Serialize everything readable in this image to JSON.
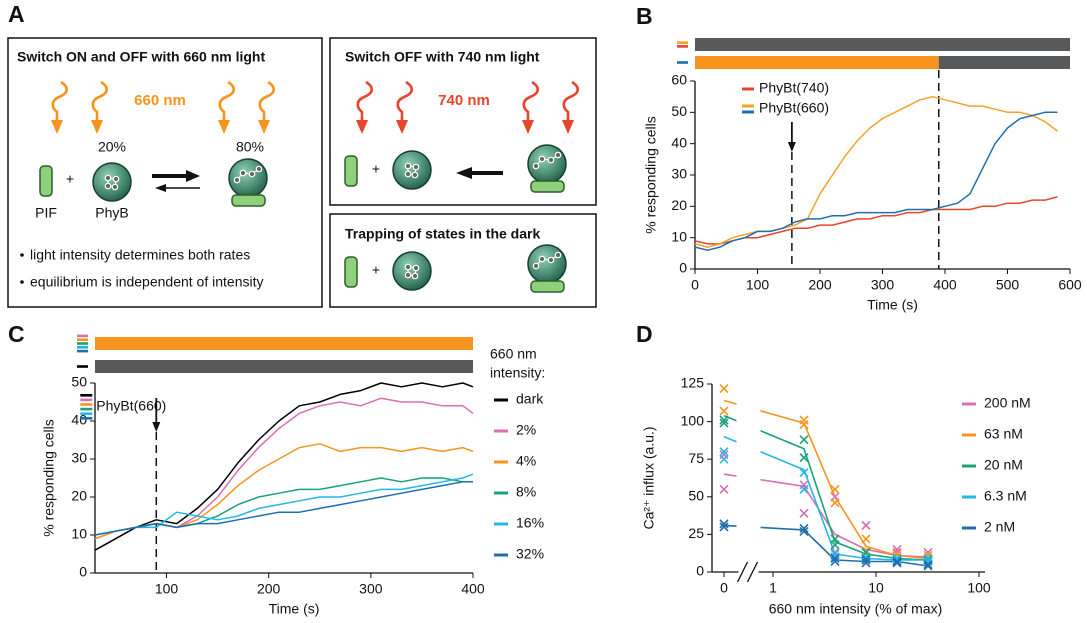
{
  "panel_labels": [
    "A",
    "B",
    "C",
    "D"
  ],
  "diagram": {
    "on_off": {
      "title": "Switch ON and OFF with 660 nm light",
      "light": "660 nm",
      "plus": "+",
      "fraction_free": "20%",
      "fraction_bound": "80%",
      "pif_label": "PIF",
      "phyb_label": "PhyB",
      "notes": [
        "light intensity determines both rates",
        "equilibrium is independent of intensity"
      ]
    },
    "off": {
      "title": "Switch OFF with 740 nm light",
      "light": "740 nm",
      "plus": "+"
    },
    "dark": {
      "title": "Trapping of states in the dark",
      "plus": "+"
    }
  },
  "chart_data": [
    {
      "type": "line",
      "xlabel": "Time (s)",
      "ylabel": "% responding cells",
      "x": [
        0,
        20,
        40,
        60,
        80,
        100,
        120,
        140,
        160,
        180,
        200,
        220,
        240,
        260,
        280,
        300,
        320,
        340,
        360,
        380,
        400,
        420,
        440,
        460,
        480,
        500,
        520,
        540,
        560,
        580
      ],
      "series": [
        {
          "name": "PhyBt(740)",
          "color": "#e8452c",
          "values": [
            9,
            8,
            8,
            9,
            10,
            10,
            11,
            12,
            13,
            13,
            14,
            14,
            15,
            16,
            16,
            17,
            17,
            18,
            18,
            19,
            19,
            19,
            19,
            20,
            20,
            21,
            21,
            22,
            22,
            23
          ]
        },
        {
          "name": "PhyBt(660)",
          "color": "#f7a128",
          "values": [
            8,
            7,
            8,
            10,
            11,
            12,
            12,
            13,
            14,
            16,
            24,
            30,
            36,
            41,
            45,
            48,
            50,
            52,
            54,
            55,
            54,
            53,
            52,
            52,
            51,
            50,
            50,
            49,
            47,
            44
          ]
        },
        {
          "color": "#1f6fae",
          "values": [
            7,
            6,
            7,
            9,
            10,
            12,
            12,
            13,
            15,
            16,
            16,
            17,
            17,
            18,
            18,
            18,
            18,
            19,
            19,
            19,
            20,
            21,
            24,
            32,
            40,
            45,
            48,
            49,
            50,
            50
          ]
        }
      ],
      "xlim": [
        0,
        600
      ],
      "xticks": [
        0,
        100,
        200,
        300,
        400,
        500,
        600
      ],
      "ylim": [
        0,
        60
      ],
      "yticks": [
        0,
        10,
        20,
        30,
        40,
        50,
        60
      ],
      "vlines": [
        155,
        390
      ],
      "arrow_x": 155,
      "legend": "upper-left",
      "light_bars": [
        {
          "series": [
            1,
            0
          ],
          "segments": [
            {
              "start": 0,
              "end": 600,
              "color": "#58595b"
            }
          ]
        },
        {
          "series": [
            2
          ],
          "segments": [
            {
              "start": 0,
              "end": 390,
              "color": "#f7941d"
            },
            {
              "start": 390,
              "end": 600,
              "color": "#58595b"
            }
          ]
        }
      ]
    },
    {
      "type": "line",
      "xlabel": "Time (s)",
      "ylabel": "% responding cells",
      "x": [
        30,
        50,
        70,
        90,
        110,
        130,
        150,
        170,
        190,
        210,
        230,
        250,
        270,
        290,
        310,
        330,
        350,
        370,
        390,
        400
      ],
      "series": [
        {
          "name": "dark",
          "color": "#000000",
          "values": [
            6,
            9,
            12,
            14,
            13,
            17,
            22,
            29,
            35,
            40,
            44,
            45,
            47,
            48,
            50,
            49,
            50,
            49,
            50,
            49
          ]
        },
        {
          "name": "2%",
          "color": "#d96fb5",
          "values": [
            9,
            11,
            12,
            13,
            12,
            15,
            20,
            27,
            33,
            38,
            42,
            44,
            45,
            44,
            46,
            45,
            45,
            44,
            44,
            42
          ]
        },
        {
          "name": "4%",
          "color": "#f7941d",
          "values": [
            9,
            11,
            12,
            13,
            12,
            14,
            18,
            23,
            27,
            30,
            33,
            34,
            32,
            33,
            33,
            32,
            33,
            32,
            33,
            32
          ]
        },
        {
          "name": "8%",
          "color": "#17a277",
          "values": [
            10,
            11,
            12,
            13,
            12,
            13,
            15,
            18,
            20,
            21,
            22,
            22,
            23,
            24,
            25,
            24,
            25,
            25,
            24,
            24
          ]
        },
        {
          "name": "16%",
          "color": "#23b8e6",
          "values": [
            10,
            11,
            12,
            12,
            16,
            15,
            14,
            15,
            17,
            18,
            19,
            20,
            20,
            21,
            22,
            22,
            23,
            24,
            25,
            26
          ]
        },
        {
          "name": "32%",
          "color": "#1f6fae",
          "values": [
            10,
            11,
            12,
            13,
            12,
            13,
            13,
            14,
            15,
            16,
            16,
            17,
            18,
            19,
            20,
            21,
            22,
            23,
            24,
            24
          ]
        }
      ],
      "xlim": [
        30,
        400
      ],
      "xticks": [
        100,
        200,
        300,
        400
      ],
      "ylim": [
        0,
        50
      ],
      "yticks": [
        0,
        10,
        20,
        30,
        40,
        50
      ],
      "vlines": [
        90
      ],
      "arrow_x": 90,
      "annotation": "PhyBt(660)",
      "legend": "right",
      "legend_title": [
        "660 nm",
        "intensity:"
      ],
      "light_bars": [
        {
          "series": [
            1,
            2,
            3,
            4,
            5
          ],
          "segments": [
            {
              "start": 30,
              "end": 400,
              "color": "#f7941d"
            }
          ]
        },
        {
          "series": [
            0
          ],
          "segments": [
            {
              "start": 30,
              "end": 400,
              "color": "#58595b"
            }
          ]
        }
      ]
    },
    {
      "type": "scatter",
      "xlabel": "660 nm intensity (% of max)",
      "ylabel": "Ca²⁺ influx (a.u.)",
      "x": [
        0,
        2,
        4,
        8,
        16,
        32
      ],
      "series": [
        {
          "name": "200 nM",
          "color": "#d96fb5",
          "values": [
            65,
            57,
            25,
            15,
            11,
            10
          ],
          "points": [
            [
              55,
              78
            ],
            [
              39,
              58
            ],
            [
              50,
              13
            ],
            [
              31,
              13
            ],
            [
              15,
              13
            ],
            [
              13,
              8
            ]
          ]
        },
        {
          "name": "63 nM",
          "color": "#f7941d",
          "values": [
            114,
            99,
            50,
            17,
            11,
            9
          ],
          "points": [
            [
              122,
              107
            ],
            [
              101,
              98
            ],
            [
              55,
              46
            ],
            [
              22,
              14
            ],
            [
              12,
              9
            ],
            [
              11,
              8
            ]
          ]
        },
        {
          "name": "20 nM",
          "color": "#17a277",
          "values": [
            104,
            82,
            20,
            12,
            9,
            8
          ],
          "points": [
            [
              101,
              99
            ],
            [
              88,
              76
            ],
            [
              22,
              18
            ],
            [
              13,
              9
            ],
            [
              9,
              8
            ],
            [
              8,
              7
            ]
          ]
        },
        {
          "name": "6.3 nM",
          "color": "#23b8e6",
          "values": [
            90,
            68,
            12,
            9,
            8,
            8
          ],
          "points": [
            [
              80,
              75
            ],
            [
              66,
              55
            ],
            [
              12,
              10
            ],
            [
              10,
              8
            ],
            [
              9,
              8
            ],
            [
              9,
              7
            ]
          ]
        },
        {
          "name": "2 nM",
          "color": "#1f6fae",
          "values": [
            31,
            28,
            8,
            7,
            7,
            4
          ],
          "points": [
            [
              32,
              30
            ],
            [
              29,
              27
            ],
            [
              9,
              7
            ],
            [
              8,
              6
            ],
            [
              7,
              6
            ],
            [
              5,
              4
            ]
          ]
        }
      ],
      "xlim": [
        1,
        100
      ],
      "xticks": [
        0,
        1,
        10,
        100
      ],
      "log_x": true,
      "axis_break": true,
      "ylim": [
        0,
        125
      ],
      "yticks": [
        0,
        25,
        50,
        75,
        100,
        125
      ],
      "legend": "right"
    }
  ]
}
